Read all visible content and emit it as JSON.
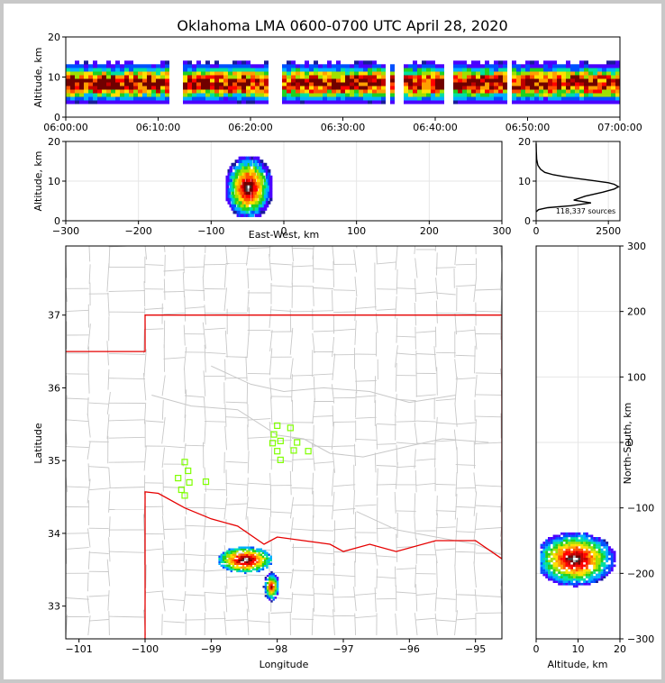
{
  "chart_data": [
    {
      "type": "heatmap",
      "panel": "time-altitude",
      "title": "Oklahoma LMA 0600-0700 UTC April 28, 2020",
      "ylabel": "Altitude, km",
      "ylim": [
        0,
        20
      ],
      "yticks": [
        0,
        10,
        20
      ],
      "xticks": [
        "06:00:00",
        "06:10:00",
        "06:20:00",
        "06:30:00",
        "06:40:00",
        "06:50:00",
        "07:00:00"
      ],
      "core_altitude_km": [
        3,
        13
      ]
    },
    {
      "type": "heatmap",
      "panel": "east-west-altitude",
      "xlabel": "East-West, km",
      "ylabel": "Altitude, km",
      "xlim": [
        -300,
        300
      ],
      "ylim": [
        0,
        20
      ],
      "xticks": [
        "−300",
        "−200",
        "−100",
        "0",
        "100",
        "200",
        "300"
      ],
      "yticks": [
        0,
        10,
        20
      ],
      "core": {
        "x_km": -50,
        "alt_km": 8
      }
    },
    {
      "type": "line",
      "panel": "altitude-histogram",
      "annotation": "118,337 sources",
      "xticks": [
        0,
        2500
      ],
      "yticks": [
        0,
        10,
        20
      ],
      "xlim": [
        0,
        2900
      ],
      "ylim": [
        0,
        20
      ],
      "x": [
        0,
        5,
        20,
        60,
        150,
        300,
        600,
        1000,
        1500,
        2000,
        2500,
        2700,
        2850,
        2700,
        2300,
        1700,
        1300,
        1900,
        1200,
        400,
        80,
        10
      ],
      "y": [
        19.5,
        17.5,
        15.5,
        14.0,
        13.0,
        12.2,
        11.6,
        11.1,
        10.6,
        10.1,
        9.6,
        9.2,
        8.6,
        8.0,
        7.2,
        6.2,
        5.2,
        4.5,
        3.8,
        3.3,
        2.8,
        2.3
      ]
    },
    {
      "type": "scatter",
      "panel": "plan-view",
      "xlabel": "Longitude",
      "ylabel": "Latitude",
      "right_label": "North-South, km",
      "xlim": [
        -101.2,
        -94.6
      ],
      "ylim": [
        32.55,
        37.95
      ],
      "xticks": [
        "−101",
        "−100",
        "−99",
        "−98",
        "−97",
        "−96",
        "−95"
      ],
      "yticks": [
        "33",
        "34",
        "35",
        "36",
        "37"
      ],
      "ns_ticks": [
        "300",
        "200",
        "100",
        "0",
        "−100",
        "−200",
        "−300"
      ],
      "stations": [
        {
          "lon": -99.4,
          "lat": 34.98
        },
        {
          "lon": -99.35,
          "lat": 34.86
        },
        {
          "lon": -99.5,
          "lat": 34.76
        },
        {
          "lon": -99.33,
          "lat": 34.7
        },
        {
          "lon": -99.45,
          "lat": 34.6
        },
        {
          "lon": -99.4,
          "lat": 34.52
        },
        {
          "lon": -99.08,
          "lat": 34.71
        },
        {
          "lon": -98.0,
          "lat": 35.48
        },
        {
          "lon": -98.05,
          "lat": 35.36
        },
        {
          "lon": -98.07,
          "lat": 35.24
        },
        {
          "lon": -97.95,
          "lat": 35.27
        },
        {
          "lon": -97.8,
          "lat": 35.45
        },
        {
          "lon": -97.7,
          "lat": 35.25
        },
        {
          "lon": -98.0,
          "lat": 35.13
        },
        {
          "lon": -97.75,
          "lat": 35.14
        },
        {
          "lon": -97.53,
          "lat": 35.13
        },
        {
          "lon": -97.95,
          "lat": 35.01
        }
      ],
      "cores": [
        {
          "lon": -98.5,
          "lat": 33.65
        },
        {
          "lon": -98.1,
          "lat": 33.28
        }
      ]
    },
    {
      "type": "heatmap",
      "panel": "altitude-north-south",
      "xlabel": "Altitude, km",
      "xlim": [
        0,
        20
      ],
      "ylim": [
        -300,
        300
      ],
      "xticks": [
        0,
        10,
        20
      ],
      "core": {
        "alt_km": 9,
        "ns_km": -180
      }
    }
  ],
  "colors": {
    "border_red": "#e60000",
    "county_gray": "#c8c8c8",
    "station_green": "#7fff00",
    "histogram_line": "#000000"
  }
}
